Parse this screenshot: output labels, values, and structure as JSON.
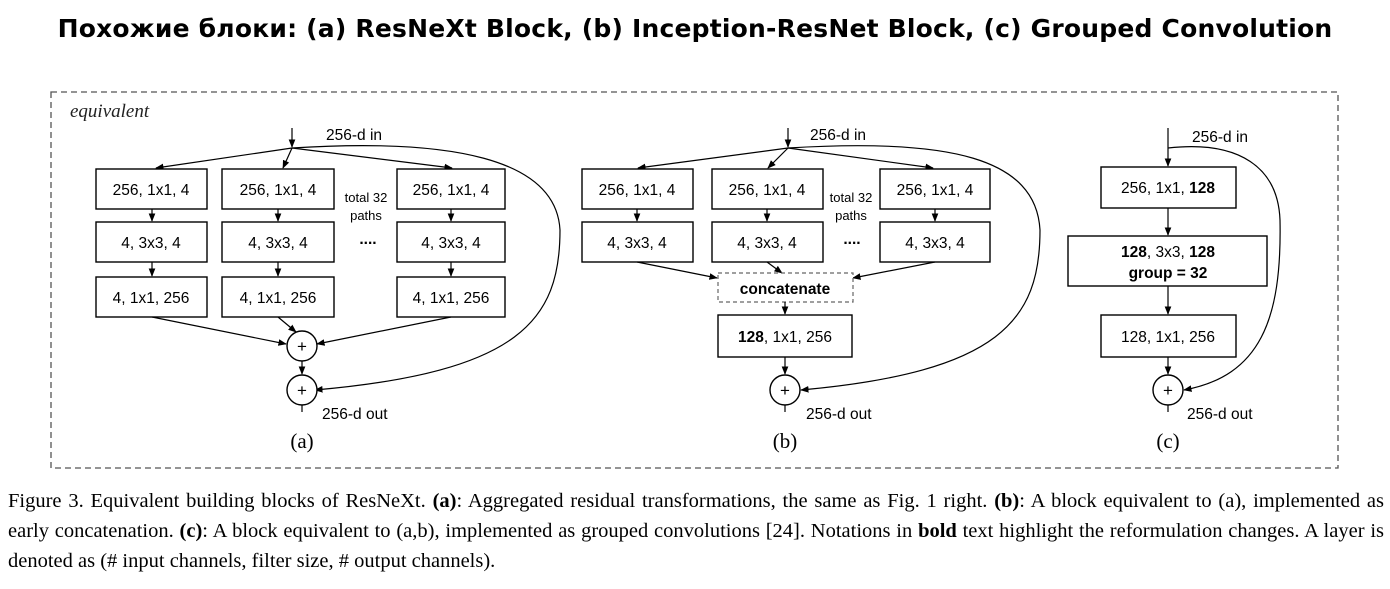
{
  "title": "Похожие блоки: (a) ResNeXt Block, (b) Inception-ResNet Block, (c) Grouped Convolution",
  "equivalent_label": "equivalent",
  "panel_a": {
    "input": "256-d in",
    "output": "256-d out",
    "sublabel": "(a)",
    "layer1": "256, 1x1, 4",
    "layer2": "4, 3x3, 4",
    "layer3": "4, 1x1, 256",
    "paths_line1": "total 32",
    "paths_line2": "paths",
    "ellipsis": "....",
    "plus": "+"
  },
  "panel_b": {
    "input": "256-d in",
    "output": "256-d out",
    "sublabel": "(b)",
    "layer1": "256, 1x1, 4",
    "layer2": "4, 3x3, 4",
    "paths_line1": "total 32",
    "paths_line2": "paths",
    "ellipsis": "....",
    "concat": "concatenate",
    "final_bold": "128",
    "final_rest": ", 1x1, 256",
    "plus": "+"
  },
  "panel_c": {
    "input": "256-d in",
    "output": "256-d out",
    "sublabel": "(c)",
    "l1_rest": "256, 1x1, ",
    "l1_bold": "128",
    "l2_bold_a": "128",
    "l2_mid": ", 3x3, ",
    "l2_bold_b": "128",
    "l2_line2": "group = 32",
    "l3": "128, 1x1, 256",
    "plus": "+"
  },
  "caption": {
    "p1": "Figure 3. Equivalent building blocks of ResNeXt. ",
    "a_label": "(a)",
    "p2": ": Aggregated residual transformations, the same as Fig. 1 right. ",
    "b_label": "(b)",
    "p3": ": A block equivalent to (a), implemented as early concatenation. ",
    "c_label": "(c)",
    "p4": ": A block equivalent to (a,b), implemented as grouped convolutions [24]. Notations in ",
    "bold_word": "bold",
    "p5": " text highlight the reformulation changes. A layer is denoted as (# input channels, filter size, # output channels)."
  }
}
